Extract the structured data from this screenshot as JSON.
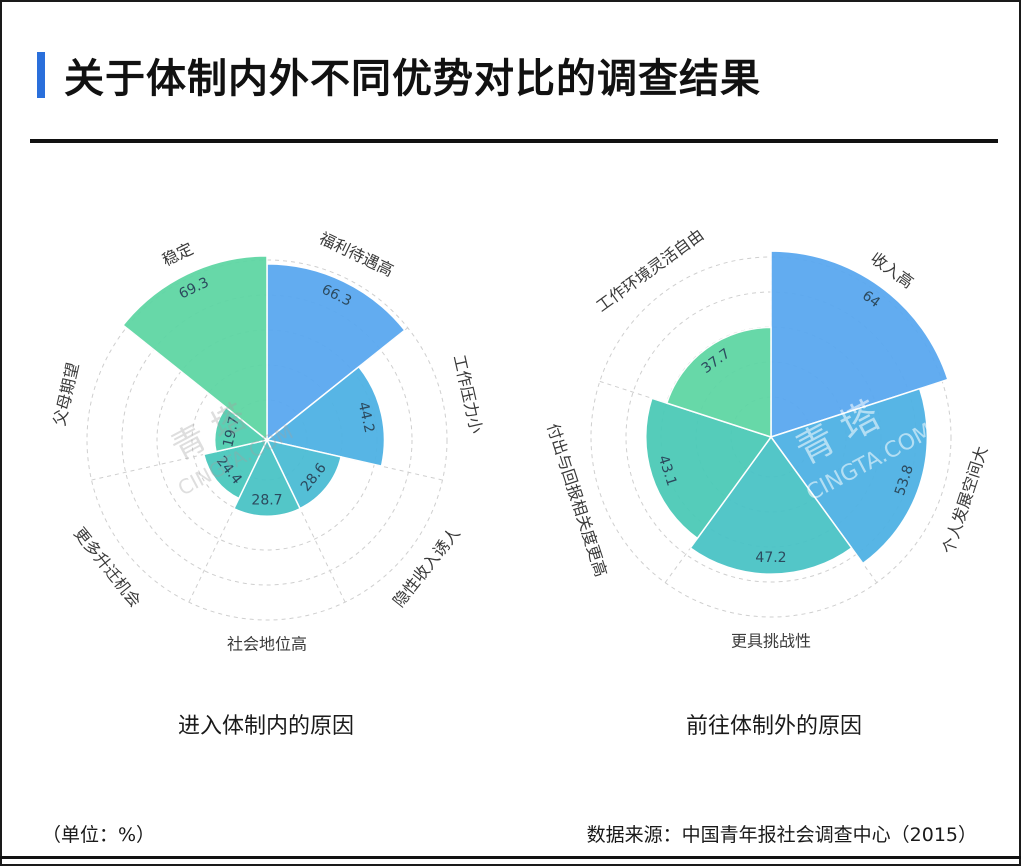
{
  "title": "关于体制内外不同优势对比的调查结果",
  "unit_note": "（单位：%）",
  "source_note": "数据来源：中国青年报社会调查中心（2015）",
  "colors": {
    "accent": "#2a6fdb",
    "blue": "#5aa8f0",
    "teal": "#4ac3c6",
    "green": "#5fd6a4"
  },
  "watermark": {
    "brand": "青 塔",
    "domain": "CINGTA.COM"
  },
  "chart_data": [
    {
      "type": "polar-bar",
      "caption": "进入体制内的原因",
      "max": 70,
      "categories": [
        "福利待遇高",
        "工作压力小",
        "隐性收入诱人",
        "社会地位高",
        "更多升迁机会",
        "父母期望",
        "稳定"
      ],
      "values": [
        66.3,
        44.2,
        28.6,
        28.7,
        24.4,
        19.7,
        69.3
      ],
      "value_labels": [
        "66.3",
        "44.2",
        "28.6",
        "28.7",
        "24.4",
        "19.7",
        "69.3"
      ],
      "colors": [
        "#5aa8f0",
        "#4fb2e4",
        "#4bbcd4",
        "#4ac3c6",
        "#4ac8bd",
        "#52cfb1",
        "#5fd6a4"
      ]
    },
    {
      "type": "polar-bar",
      "caption": "前往体制外的原因",
      "max": 64,
      "categories": [
        "收入高",
        "个人发展空间大",
        "更具挑战性",
        "付出与回报相关度更高",
        "工作环境灵活自由"
      ],
      "values": [
        64,
        53.8,
        47.2,
        43.1,
        37.7
      ],
      "value_labels": [
        "64",
        "53.8",
        "47.2",
        "43.1",
        "37.7"
      ],
      "colors": [
        "#5aa8f0",
        "#4fb2e4",
        "#4ac3c6",
        "#4ccab7",
        "#5fd6a4"
      ]
    }
  ]
}
